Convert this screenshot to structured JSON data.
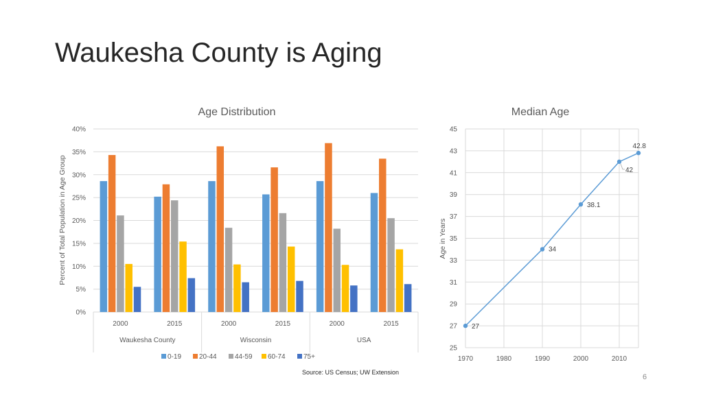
{
  "slide": {
    "title": "Waukesha County is Aging",
    "source": "Source: US Census; UW Extension",
    "page_number": "6"
  },
  "chart_data": [
    {
      "type": "bar",
      "title": "Age Distribution",
      "ylabel": "Percent of Total Population in Age Group",
      "ylim": [
        0,
        40
      ],
      "y_ticks": [
        "0%",
        "5%",
        "10%",
        "15%",
        "20%",
        "25%",
        "30%",
        "35%",
        "40%"
      ],
      "groups": [
        "Waukesha County",
        "Wisconsin",
        "USA"
      ],
      "categories": [
        "2000",
        "2015",
        "2000",
        "2015",
        "2000",
        "2015"
      ],
      "series": [
        {
          "name": "0-19",
          "color": "#5B9BD5",
          "values": [
            28.6,
            25.2,
            28.6,
            25.7,
            28.6,
            26.0
          ]
        },
        {
          "name": "20-44",
          "color": "#ED7D31",
          "values": [
            34.3,
            27.9,
            36.2,
            31.6,
            36.9,
            33.5
          ]
        },
        {
          "name": "44-59",
          "color": "#A5A5A5",
          "values": [
            21.1,
            24.4,
            18.4,
            21.6,
            18.2,
            20.5
          ]
        },
        {
          "name": "60-74",
          "color": "#FFC000",
          "values": [
            10.5,
            15.4,
            10.4,
            14.3,
            10.3,
            13.7
          ]
        },
        {
          "name": "75+",
          "color": "#4472C4",
          "values": [
            5.5,
            7.4,
            6.5,
            6.8,
            5.8,
            6.1
          ]
        }
      ],
      "grid": true,
      "legend": "bottom"
    },
    {
      "type": "scatter",
      "title": "Median Age",
      "ylabel": "Age in Years",
      "xlim": [
        1970,
        2015
      ],
      "ylim": [
        25,
        45
      ],
      "x_ticks": [
        "1970",
        "1980",
        "1990",
        "2000",
        "2010"
      ],
      "y_ticks": [
        "25",
        "27",
        "29",
        "31",
        "33",
        "35",
        "37",
        "39",
        "41",
        "43",
        "45"
      ],
      "x": [
        1970,
        1990,
        2000,
        2010,
        2015
      ],
      "y": [
        27,
        34,
        38.1,
        42,
        42.8
      ],
      "data_labels": [
        "27",
        "34",
        "38.1",
        "42",
        "42.8"
      ],
      "color": "#5B9BD5",
      "grid": true
    }
  ]
}
